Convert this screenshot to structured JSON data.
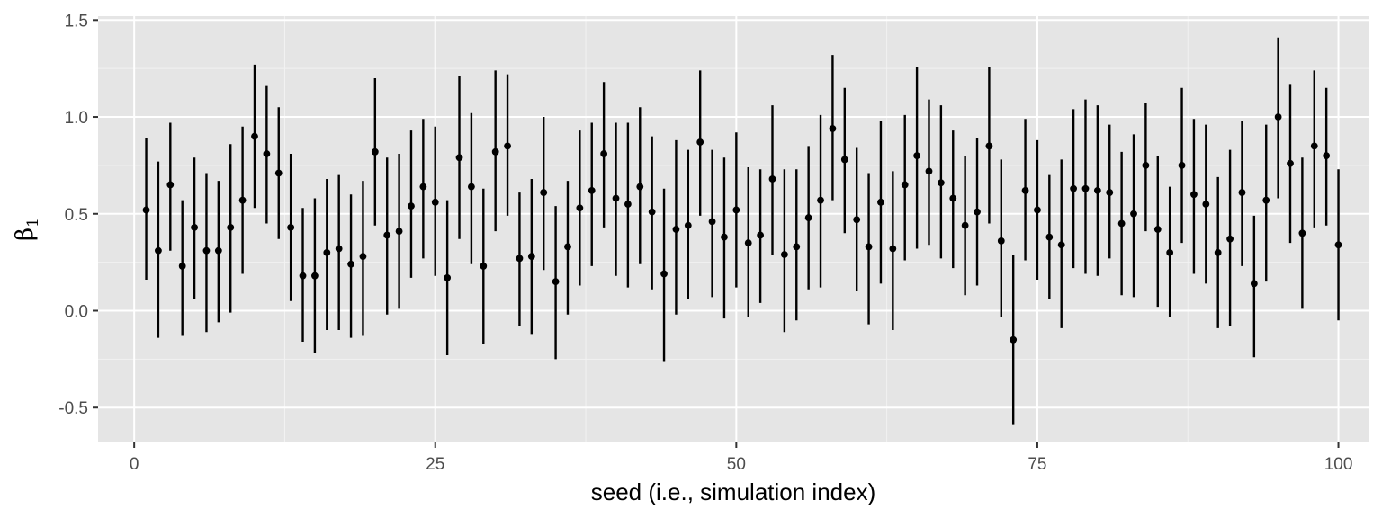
{
  "chart_data": {
    "type": "scatter",
    "error_bars": true,
    "xlabel": "seed (i.e., simulation index)",
    "ylabel": {
      "base": "β",
      "subscript": "1"
    },
    "xlim": [
      -3.0,
      102.5
    ],
    "ylim": [
      -0.68,
      1.52
    ],
    "xticks": [
      0,
      25,
      50,
      75,
      100
    ],
    "xtick_labels": [
      "0",
      "25",
      "50",
      "75",
      "100"
    ],
    "yticks": [
      -0.5,
      0.0,
      0.5,
      1.0,
      1.5
    ],
    "ytick_labels": [
      "-0.5",
      "0.0",
      "0.5",
      "1.0",
      "1.5"
    ],
    "grid": true,
    "panel_color": "#e5e5e5",
    "mark_color": "#000000",
    "x": [
      1,
      2,
      3,
      4,
      5,
      6,
      7,
      8,
      9,
      10,
      11,
      12,
      13,
      14,
      15,
      16,
      17,
      18,
      19,
      20,
      21,
      22,
      23,
      24,
      25,
      26,
      27,
      28,
      29,
      30,
      31,
      32,
      33,
      34,
      35,
      36,
      37,
      38,
      39,
      40,
      41,
      42,
      43,
      44,
      45,
      46,
      47,
      48,
      49,
      50,
      51,
      52,
      53,
      54,
      55,
      56,
      57,
      58,
      59,
      60,
      61,
      62,
      63,
      64,
      65,
      66,
      67,
      68,
      69,
      70,
      71,
      72,
      73,
      74,
      75,
      76,
      77,
      78,
      79,
      80,
      81,
      82,
      83,
      84,
      85,
      86,
      87,
      88,
      89,
      90,
      91,
      92,
      93,
      94,
      95,
      96,
      97,
      98,
      99,
      100
    ],
    "estimate": [
      0.52,
      0.31,
      0.65,
      0.23,
      0.43,
      0.31,
      0.31,
      0.43,
      0.57,
      0.9,
      0.81,
      0.71,
      0.43,
      0.18,
      0.18,
      0.3,
      0.32,
      0.24,
      0.28,
      0.82,
      0.39,
      0.41,
      0.54,
      0.64,
      0.56,
      0.17,
      0.79,
      0.64,
      0.23,
      0.82,
      0.85,
      0.27,
      0.28,
      0.61,
      0.15,
      0.33,
      0.53,
      0.62,
      0.81,
      0.58,
      0.55,
      0.64,
      0.51,
      0.19,
      0.42,
      0.44,
      0.87,
      0.46,
      0.38,
      0.52,
      0.35,
      0.39,
      0.68,
      0.29,
      0.33,
      0.48,
      0.57,
      0.94,
      0.78,
      0.47,
      0.33,
      0.56,
      0.32,
      0.65,
      0.8,
      0.72,
      0.66,
      0.58,
      0.44,
      0.51,
      0.85,
      0.36,
      -0.15,
      0.62,
      0.52,
      0.38,
      0.34,
      0.63,
      0.63,
      0.62,
      0.61,
      0.45,
      0.5,
      0.75,
      0.42,
      0.3,
      0.75,
      0.6,
      0.55,
      0.3,
      0.37,
      0.61,
      0.14,
      0.57,
      1.0,
      0.76,
      0.4,
      0.85,
      0.8,
      0.34
    ],
    "lower": [
      0.16,
      -0.14,
      0.31,
      -0.13,
      0.06,
      -0.11,
      -0.06,
      -0.01,
      0.19,
      0.53,
      0.45,
      0.37,
      0.05,
      -0.16,
      -0.22,
      -0.1,
      -0.1,
      -0.14,
      -0.13,
      0.44,
      -0.02,
      0.01,
      0.17,
      0.27,
      0.18,
      -0.23,
      0.37,
      0.24,
      -0.17,
      0.41,
      0.49,
      -0.08,
      -0.12,
      0.21,
      -0.25,
      -0.02,
      0.13,
      0.23,
      0.43,
      0.18,
      0.12,
      0.24,
      0.11,
      -0.26,
      -0.02,
      0.06,
      0.49,
      0.07,
      -0.04,
      0.12,
      -0.03,
      0.04,
      0.29,
      -0.11,
      -0.05,
      0.11,
      0.12,
      0.57,
      0.4,
      0.1,
      -0.07,
      0.14,
      -0.1,
      0.26,
      0.32,
      0.34,
      0.27,
      0.22,
      0.08,
      0.13,
      0.45,
      -0.03,
      -0.59,
      0.26,
      0.16,
      0.06,
      -0.09,
      0.22,
      0.19,
      0.18,
      0.27,
      0.08,
      0.07,
      0.41,
      0.02,
      -0.03,
      0.35,
      0.19,
      0.14,
      -0.09,
      -0.08,
      0.23,
      -0.24,
      0.15,
      0.58,
      0.35,
      0.01,
      0.43,
      0.44,
      -0.05
    ],
    "upper": [
      0.89,
      0.77,
      0.97,
      0.57,
      0.79,
      0.71,
      0.67,
      0.86,
      0.95,
      1.27,
      1.16,
      1.05,
      0.81,
      0.53,
      0.58,
      0.68,
      0.7,
      0.6,
      0.67,
      1.2,
      0.79,
      0.81,
      0.93,
      0.99,
      0.95,
      0.57,
      1.21,
      1.02,
      0.63,
      1.24,
      1.22,
      0.61,
      0.68,
      1.0,
      0.54,
      0.67,
      0.93,
      0.97,
      1.18,
      0.97,
      0.97,
      1.05,
      0.9,
      0.63,
      0.88,
      0.83,
      1.24,
      0.83,
      0.79,
      0.92,
      0.74,
      0.73,
      1.06,
      0.73,
      0.73,
      0.85,
      1.01,
      1.32,
      1.15,
      0.84,
      0.71,
      0.98,
      0.72,
      1.01,
      1.26,
      1.09,
      1.06,
      0.93,
      0.8,
      0.89,
      1.26,
      0.78,
      0.29,
      0.99,
      0.88,
      0.7,
      0.78,
      1.04,
      1.09,
      1.06,
      0.96,
      0.82,
      0.91,
      1.07,
      0.8,
      0.64,
      1.15,
      0.99,
      0.96,
      0.69,
      0.83,
      0.98,
      0.49,
      0.96,
      1.41,
      1.17,
      0.79,
      1.24,
      1.15,
      0.73
    ]
  }
}
